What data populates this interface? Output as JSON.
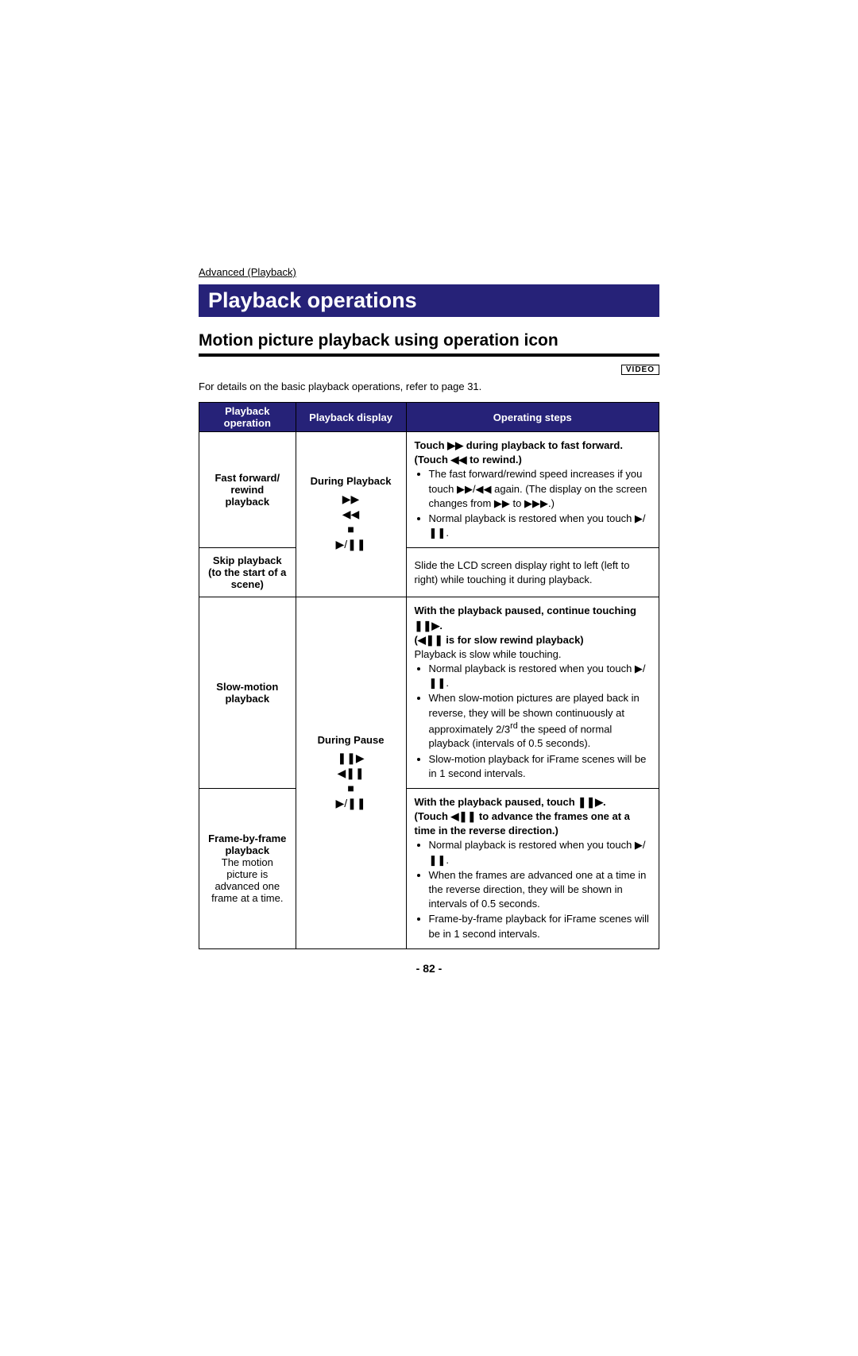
{
  "breadcrumb": "Advanced (Playback)",
  "main_heading": "Playback operations",
  "sub_heading": "Motion picture playback using operation icon",
  "video_tag": "VIDEO",
  "intro": "For details on the basic playback operations, refer to page 31.",
  "headers": {
    "op": "Playback operation",
    "disp": "Playback display",
    "steps": "Operating steps"
  },
  "row1": {
    "op_bold": "Fast forward/\nrewind playback",
    "disp_label": "During Playback",
    "icons": [
      "▶▶",
      "◀◀",
      "■",
      "▶/❚❚"
    ],
    "steps_bold1": "Touch ▶▶ during playback to fast forward.",
    "steps_bold2": "(Touch ◀◀ to rewind.)",
    "bullet1": "The fast forward/rewind speed increases if you touch ▶▶/◀◀ again. (The display on the screen changes from ▶▶ to ▶▶▶.)",
    "bullet2": "Normal playback is restored when you touch ▶/❚❚."
  },
  "row2": {
    "op_bold": "Skip playback\n(to the start of a\nscene)",
    "steps": "Slide the LCD screen display right to left (left to right) while touching it during playback."
  },
  "row3": {
    "op_bold": "Slow-motion\nplayback",
    "disp_label": "During Pause",
    "icons": [
      "❚❚▶",
      "◀❚❚",
      "■",
      "▶/❚❚"
    ],
    "steps_bold1": "With the playback paused, continue touching ❚❚▶.",
    "steps_bold2": "(◀❚❚ is for slow rewind playback)",
    "steps_line": "Playback is slow while touching.",
    "bullet1": "Normal playback is restored when you touch ▶/❚❚.",
    "bullet2a": "When slow-motion pictures are played back in reverse, they will be shown continuously at approximately 2/3",
    "bullet2b": " the speed of normal playback (intervals of 0.5 seconds).",
    "bullet3": "Slow-motion playback for iFrame scenes will be in 1 second intervals."
  },
  "row4": {
    "op_bold": "Frame-by-frame\nplayback",
    "op_sub": "The motion picture is advanced one frame at a time.",
    "steps_bold1": "With the playback paused, touch ❚❚▶.",
    "steps_bold2": "(Touch ◀❚❚ to advance the frames one at a time in the reverse direction.)",
    "bullet1": "Normal playback is restored when you touch ▶/❚❚.",
    "bullet2": "When the frames are advanced one at a time in the reverse direction, they will be shown in intervals of 0.5 seconds.",
    "bullet3": "Frame-by-frame playback for iFrame scenes will be in 1 second intervals."
  },
  "page_number": "- 82 -",
  "colors": {
    "heading_bg": "#262278",
    "heading_fg": "#ffffff",
    "border": "#000000",
    "text": "#000000"
  }
}
